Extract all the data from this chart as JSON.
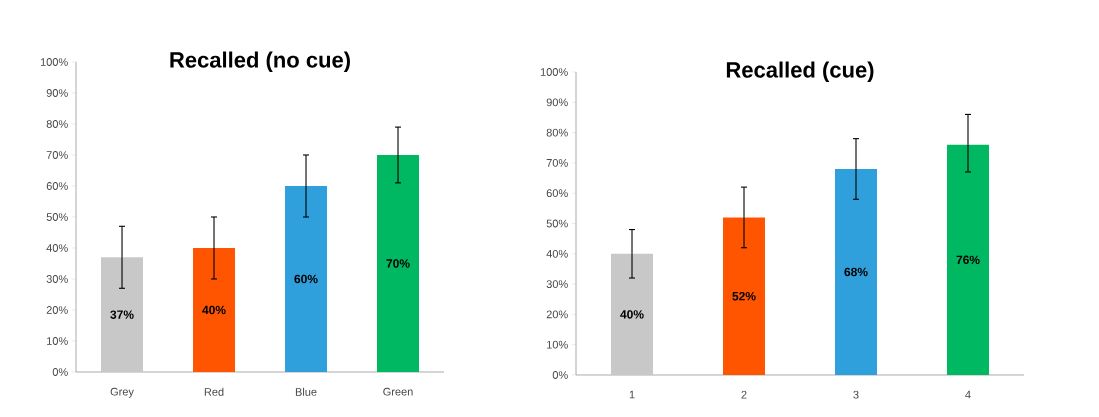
{
  "chart_data": [
    {
      "type": "bar",
      "title": "Recalled (no cue)",
      "categories": [
        "Grey",
        "Red",
        "Blue",
        "Green"
      ],
      "values": [
        37,
        40,
        60,
        70
      ],
      "colors": [
        "#c8c8c8",
        "#ff5500",
        "#30a0dc",
        "#00b862"
      ],
      "errors": [
        10,
        10,
        10,
        9
      ],
      "value_labels": [
        "37%",
        "40%",
        "60%",
        "70%"
      ],
      "ylim": [
        0,
        100
      ],
      "yticks": [
        {
          "value": 0,
          "label": "0%"
        },
        {
          "value": 10,
          "label": "10%"
        },
        {
          "value": 20,
          "label": "20%"
        },
        {
          "value": 30,
          "label": "30%"
        },
        {
          "value": 40,
          "label": "40%"
        },
        {
          "value": 50,
          "label": "50%"
        },
        {
          "value": 60,
          "label": "60%"
        },
        {
          "value": 70,
          "label": "70%"
        },
        {
          "value": 80,
          "label": "80%"
        },
        {
          "value": 90,
          "label": "90%"
        },
        {
          "value": 100,
          "label": "100%"
        }
      ]
    },
    {
      "type": "bar",
      "title": "Recalled (cue)",
      "categories": [
        "1",
        "2",
        "3",
        "4"
      ],
      "values": [
        40,
        52,
        68,
        76
      ],
      "colors": [
        "#c8c8c8",
        "#ff5500",
        "#30a0dc",
        "#00b862"
      ],
      "errors": [
        8,
        10,
        10,
        [
          67,
          86
        ]
      ],
      "value_labels": [
        "40%",
        "52%",
        "68%",
        "76%"
      ],
      "ylim": [
        0,
        100
      ],
      "yticks": [
        {
          "value": 0,
          "label": "0%"
        },
        {
          "value": 10,
          "label": "10%"
        },
        {
          "value": 20,
          "label": "20%"
        },
        {
          "value": 30,
          "label": "30%"
        },
        {
          "value": 40,
          "label": "40%"
        },
        {
          "value": 50,
          "label": "50%"
        },
        {
          "value": 60,
          "label": "60%"
        },
        {
          "value": 70,
          "label": "70%"
        },
        {
          "value": 80,
          "label": "80%"
        },
        {
          "value": 90,
          "label": "90%"
        },
        {
          "value": 100,
          "label": "100%"
        }
      ]
    }
  ]
}
